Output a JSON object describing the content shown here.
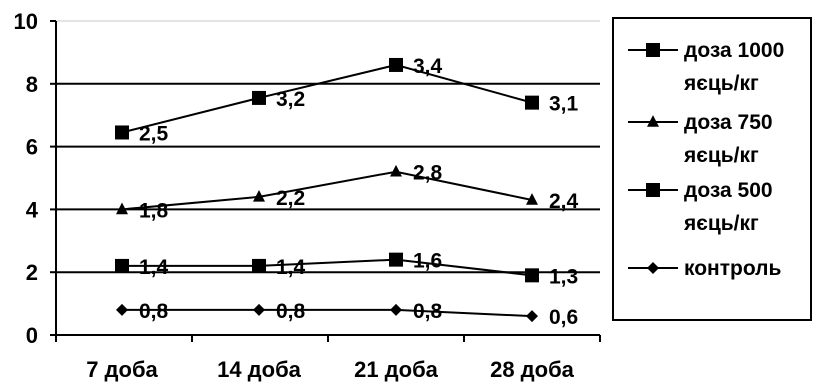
{
  "chart_data": {
    "type": "line",
    "categories": [
      "7 доба",
      "14 доба",
      "21 доба",
      "28 доба"
    ],
    "ylim": [
      0,
      10
    ],
    "yticks": [
      0,
      2,
      4,
      6,
      8,
      10
    ],
    "grid": "horizontal",
    "legend_position": "right",
    "series": [
      {
        "name": [
          "доза 1000",
          "яєць/кг"
        ],
        "marker": "square",
        "plot_values": [
          6.45,
          7.55,
          8.6,
          7.4
        ],
        "labels": [
          "2,5",
          "3,2",
          "3,4",
          "3,1"
        ]
      },
      {
        "name": [
          "доза 750",
          "яєць/кг"
        ],
        "marker": "triangle",
        "plot_values": [
          4.0,
          4.4,
          5.2,
          4.3
        ],
        "labels": [
          "1,8",
          "2,2",
          "2,8",
          "2,4"
        ]
      },
      {
        "name": [
          "доза 500",
          "яєць/кг"
        ],
        "marker": "square",
        "plot_values": [
          2.2,
          2.2,
          2.4,
          1.9
        ],
        "labels": [
          "1,4",
          "1,4",
          "1,6",
          "1,3"
        ]
      },
      {
        "name": [
          "контроль"
        ],
        "marker": "diamond",
        "plot_values": [
          0.8,
          0.8,
          0.8,
          0.6
        ],
        "labels": [
          "0,8",
          "0,8",
          "0,8",
          "0,6"
        ]
      }
    ]
  }
}
